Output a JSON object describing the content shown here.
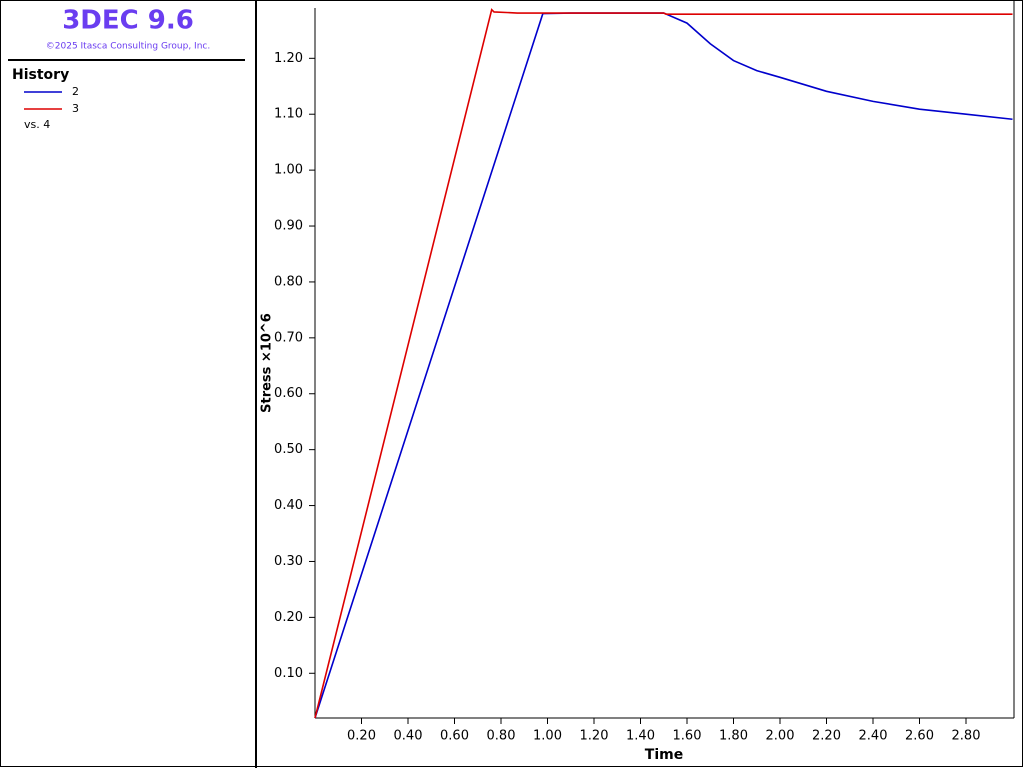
{
  "header": {
    "title": "3DEC 9.6",
    "copyright": "©2025 Itasca Consulting Group, Inc."
  },
  "chart_data": {
    "type": "line",
    "legend_title": "History",
    "x_variable_label": "vs. 4",
    "xlabel": "Time",
    "ylabel": "Stress ×10^6",
    "xlim": [
      0,
      3.0
    ],
    "ylim": [
      0.02,
      1.29
    ],
    "xticks": [
      {
        "value": 0.2,
        "label": "0.20"
      },
      {
        "value": 0.4,
        "label": "0.40"
      },
      {
        "value": 0.6,
        "label": "0.60"
      },
      {
        "value": 0.8,
        "label": "0.80"
      },
      {
        "value": 1.0,
        "label": "1.00"
      },
      {
        "value": 1.2,
        "label": "1.20"
      },
      {
        "value": 1.4,
        "label": "1.40"
      },
      {
        "value": 1.6,
        "label": "1.60"
      },
      {
        "value": 1.8,
        "label": "1.80"
      },
      {
        "value": 2.0,
        "label": "2.00"
      },
      {
        "value": 2.2,
        "label": "2.20"
      },
      {
        "value": 2.4,
        "label": "2.40"
      },
      {
        "value": 2.6,
        "label": "2.60"
      },
      {
        "value": 2.8,
        "label": "2.80"
      }
    ],
    "yticks": [
      {
        "value": 0.1,
        "label": "0.10"
      },
      {
        "value": 0.2,
        "label": "0.20"
      },
      {
        "value": 0.3,
        "label": "0.30"
      },
      {
        "value": 0.4,
        "label": "0.40"
      },
      {
        "value": 0.5,
        "label": "0.50"
      },
      {
        "value": 0.6,
        "label": "0.60"
      },
      {
        "value": 0.7,
        "label": "0.70"
      },
      {
        "value": 0.8,
        "label": "0.80"
      },
      {
        "value": 0.9,
        "label": "0.90"
      },
      {
        "value": 1.0,
        "label": "1.00"
      },
      {
        "value": 1.1,
        "label": "1.10"
      },
      {
        "value": 1.2,
        "label": "1.20"
      }
    ],
    "series": [
      {
        "name": "2",
        "color": "#0000cc",
        "x": [
          0,
          0.98,
          1.1,
          1.5,
          1.6,
          1.7,
          1.8,
          1.9,
          2.0,
          2.2,
          2.4,
          2.6,
          2.8,
          3.0
        ],
        "values": [
          0.02,
          1.28,
          1.281,
          1.281,
          1.263,
          1.226,
          1.196,
          1.178,
          1.166,
          1.141,
          1.123,
          1.109,
          1.1,
          1.091
        ]
      },
      {
        "name": "3",
        "color": "#dd0000",
        "x": [
          0,
          0.76,
          0.77,
          0.87,
          1.5,
          1.51,
          3.0
        ],
        "values": [
          0.02,
          1.287,
          1.283,
          1.281,
          1.281,
          1.279,
          1.279
        ]
      }
    ]
  }
}
